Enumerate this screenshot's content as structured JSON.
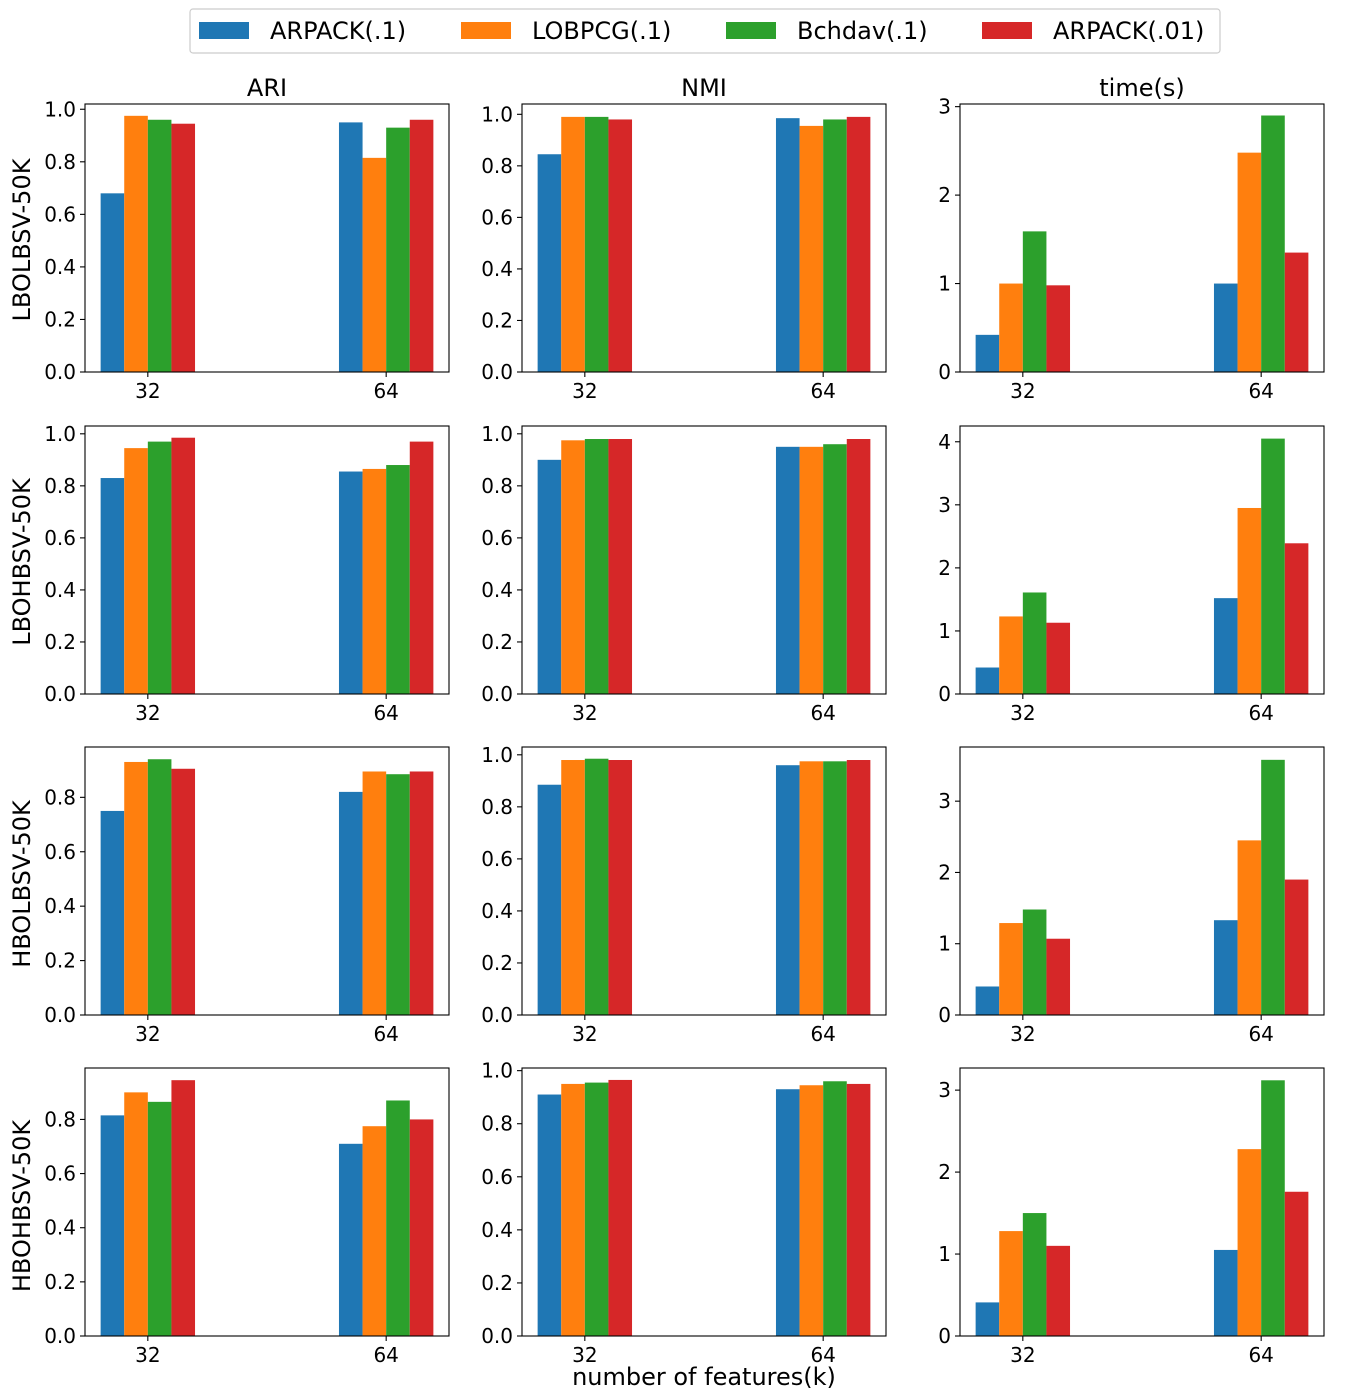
{
  "legend": {
    "items": [
      {
        "name": "ARPACK(.1)",
        "color": "#1f77b4"
      },
      {
        "name": "LOBPCG(.1)",
        "color": "#ff7f0e"
      },
      {
        "name": "Bchdav(.1)",
        "color": "#2ca02c"
      },
      {
        "name": "ARPACK(.01)",
        "color": "#d62728"
      }
    ]
  },
  "column_titles": [
    "ARI",
    "NMI",
    "time(s)"
  ],
  "row_labels": [
    "LBOLBSV-50K",
    "LBOHBSV-50K",
    "HBOLBSV-50K",
    "HBOHBSV-50K"
  ],
  "xlabel": "number of features(k)",
  "chart_data": [
    {
      "type": "bar",
      "row": 0,
      "col": 0,
      "title": "ARI",
      "ylabel": "LBOLBSV-50K",
      "categories": [
        "32",
        "64"
      ],
      "ylim": [
        0,
        1.02
      ],
      "yticks": [
        "0.0",
        "0.2",
        "0.4",
        "0.6",
        "0.8",
        "1.0"
      ],
      "series": [
        {
          "name": "ARPACK(.1)",
          "values": [
            0.68,
            0.95
          ]
        },
        {
          "name": "LOBPCG(.1)",
          "values": [
            0.975,
            0.815
          ]
        },
        {
          "name": "Bchdav(.1)",
          "values": [
            0.96,
            0.93
          ]
        },
        {
          "name": "ARPACK(.01)",
          "values": [
            0.945,
            0.96
          ]
        }
      ]
    },
    {
      "type": "bar",
      "row": 0,
      "col": 1,
      "title": "NMI",
      "ylabel": "",
      "categories": [
        "32",
        "64"
      ],
      "ylim": [
        0,
        1.04
      ],
      "yticks": [
        "0.0",
        "0.2",
        "0.4",
        "0.6",
        "0.8",
        "1.0"
      ],
      "series": [
        {
          "name": "ARPACK(.1)",
          "values": [
            0.845,
            0.985
          ]
        },
        {
          "name": "LOBPCG(.1)",
          "values": [
            0.99,
            0.955
          ]
        },
        {
          "name": "Bchdav(.1)",
          "values": [
            0.99,
            0.98
          ]
        },
        {
          "name": "ARPACK(.01)",
          "values": [
            0.98,
            0.99
          ]
        }
      ]
    },
    {
      "type": "bar",
      "row": 0,
      "col": 2,
      "title": "time(s)",
      "ylabel": "",
      "categories": [
        "32",
        "64"
      ],
      "ylim": [
        0,
        3.03
      ],
      "yticks": [
        "0",
        "1",
        "2",
        "3"
      ],
      "series": [
        {
          "name": "ARPACK(.1)",
          "values": [
            0.42,
            1.0
          ]
        },
        {
          "name": "LOBPCG(.1)",
          "values": [
            1.0,
            2.48
          ]
        },
        {
          "name": "Bchdav(.1)",
          "values": [
            1.59,
            2.9
          ]
        },
        {
          "name": "ARPACK(.01)",
          "values": [
            0.98,
            1.35
          ]
        }
      ]
    },
    {
      "type": "bar",
      "row": 1,
      "col": 0,
      "title": "",
      "ylabel": "LBOHBSV-50K",
      "categories": [
        "32",
        "64"
      ],
      "ylim": [
        0,
        1.03
      ],
      "yticks": [
        "0.0",
        "0.2",
        "0.4",
        "0.6",
        "0.8",
        "1.0"
      ],
      "series": [
        {
          "name": "ARPACK(.1)",
          "values": [
            0.83,
            0.855
          ]
        },
        {
          "name": "LOBPCG(.1)",
          "values": [
            0.945,
            0.865
          ]
        },
        {
          "name": "Bchdav(.1)",
          "values": [
            0.97,
            0.88
          ]
        },
        {
          "name": "ARPACK(.01)",
          "values": [
            0.985,
            0.97
          ]
        }
      ]
    },
    {
      "type": "bar",
      "row": 1,
      "col": 1,
      "title": "",
      "ylabel": "",
      "categories": [
        "32",
        "64"
      ],
      "ylim": [
        0,
        1.03
      ],
      "yticks": [
        "0.0",
        "0.2",
        "0.4",
        "0.6",
        "0.8",
        "1.0"
      ],
      "series": [
        {
          "name": "ARPACK(.1)",
          "values": [
            0.9,
            0.95
          ]
        },
        {
          "name": "LOBPCG(.1)",
          "values": [
            0.975,
            0.95
          ]
        },
        {
          "name": "Bchdav(.1)",
          "values": [
            0.98,
            0.96
          ]
        },
        {
          "name": "ARPACK(.01)",
          "values": [
            0.98,
            0.98
          ]
        }
      ]
    },
    {
      "type": "bar",
      "row": 1,
      "col": 2,
      "title": "",
      "ylabel": "",
      "categories": [
        "32",
        "64"
      ],
      "ylim": [
        0,
        4.25
      ],
      "yticks": [
        "0",
        "1",
        "2",
        "3",
        "4"
      ],
      "series": [
        {
          "name": "ARPACK(.1)",
          "values": [
            0.42,
            1.52
          ]
        },
        {
          "name": "LOBPCG(.1)",
          "values": [
            1.23,
            2.95
          ]
        },
        {
          "name": "Bchdav(.1)",
          "values": [
            1.61,
            4.05
          ]
        },
        {
          "name": "ARPACK(.01)",
          "values": [
            1.13,
            2.39
          ]
        }
      ]
    },
    {
      "type": "bar",
      "row": 2,
      "col": 0,
      "title": "",
      "ylabel": "HBOLBSV-50K",
      "categories": [
        "32",
        "64"
      ],
      "ylim": [
        0,
        0.985
      ],
      "yticks": [
        "0.0",
        "0.2",
        "0.4",
        "0.6",
        "0.8"
      ],
      "series": [
        {
          "name": "ARPACK(.1)",
          "values": [
            0.75,
            0.82
          ]
        },
        {
          "name": "LOBPCG(.1)",
          "values": [
            0.93,
            0.895
          ]
        },
        {
          "name": "Bchdav(.1)",
          "values": [
            0.94,
            0.885
          ]
        },
        {
          "name": "ARPACK(.01)",
          "values": [
            0.905,
            0.895
          ]
        }
      ]
    },
    {
      "type": "bar",
      "row": 2,
      "col": 1,
      "title": "",
      "ylabel": "",
      "categories": [
        "32",
        "64"
      ],
      "ylim": [
        0,
        1.03
      ],
      "yticks": [
        "0.0",
        "0.2",
        "0.4",
        "0.6",
        "0.8",
        "1.0"
      ],
      "series": [
        {
          "name": "ARPACK(.1)",
          "values": [
            0.885,
            0.96
          ]
        },
        {
          "name": "LOBPCG(.1)",
          "values": [
            0.98,
            0.975
          ]
        },
        {
          "name": "Bchdav(.1)",
          "values": [
            0.985,
            0.975
          ]
        },
        {
          "name": "ARPACK(.01)",
          "values": [
            0.98,
            0.98
          ]
        }
      ]
    },
    {
      "type": "bar",
      "row": 2,
      "col": 2,
      "title": "",
      "ylabel": "",
      "categories": [
        "32",
        "64"
      ],
      "ylim": [
        0,
        3.76
      ],
      "yticks": [
        "0",
        "1",
        "2",
        "3"
      ],
      "series": [
        {
          "name": "ARPACK(.1)",
          "values": [
            0.4,
            1.33
          ]
        },
        {
          "name": "LOBPCG(.1)",
          "values": [
            1.29,
            2.45
          ]
        },
        {
          "name": "Bchdav(.1)",
          "values": [
            1.48,
            3.58
          ]
        },
        {
          "name": "ARPACK(.01)",
          "values": [
            1.07,
            1.9
          ]
        }
      ]
    },
    {
      "type": "bar",
      "row": 3,
      "col": 0,
      "title": "",
      "ylabel": "HBOHBSV-50K",
      "categories": [
        "32",
        "64"
      ],
      "ylim": [
        0,
        0.99
      ],
      "yticks": [
        "0.0",
        "0.2",
        "0.4",
        "0.6",
        "0.8"
      ],
      "series": [
        {
          "name": "ARPACK(.1)",
          "values": [
            0.815,
            0.71
          ]
        },
        {
          "name": "LOBPCG(.1)",
          "values": [
            0.9,
            0.775
          ]
        },
        {
          "name": "Bchdav(.1)",
          "values": [
            0.865,
            0.87
          ]
        },
        {
          "name": "ARPACK(.01)",
          "values": [
            0.945,
            0.8
          ]
        }
      ]
    },
    {
      "type": "bar",
      "row": 3,
      "col": 1,
      "title": "",
      "ylabel": "",
      "categories": [
        "32",
        "64"
      ],
      "ylim": [
        0,
        1.01
      ],
      "yticks": [
        "0.0",
        "0.2",
        "0.4",
        "0.6",
        "0.8",
        "1.0"
      ],
      "series": [
        {
          "name": "ARPACK(.1)",
          "values": [
            0.91,
            0.93
          ]
        },
        {
          "name": "LOBPCG(.1)",
          "values": [
            0.95,
            0.945
          ]
        },
        {
          "name": "Bchdav(.1)",
          "values": [
            0.955,
            0.96
          ]
        },
        {
          "name": "ARPACK(.01)",
          "values": [
            0.965,
            0.95
          ]
        }
      ]
    },
    {
      "type": "bar",
      "row": 3,
      "col": 2,
      "title": "",
      "ylabel": "",
      "categories": [
        "32",
        "64"
      ],
      "ylim": [
        0,
        3.27
      ],
      "yticks": [
        "0",
        "1",
        "2",
        "3"
      ],
      "series": [
        {
          "name": "ARPACK(.1)",
          "values": [
            0.41,
            1.05
          ]
        },
        {
          "name": "LOBPCG(.1)",
          "values": [
            1.28,
            2.28
          ]
        },
        {
          "name": "Bchdav(.1)",
          "values": [
            1.5,
            3.12
          ]
        },
        {
          "name": "ARPACK(.01)",
          "values": [
            1.1,
            1.76
          ]
        }
      ]
    }
  ]
}
